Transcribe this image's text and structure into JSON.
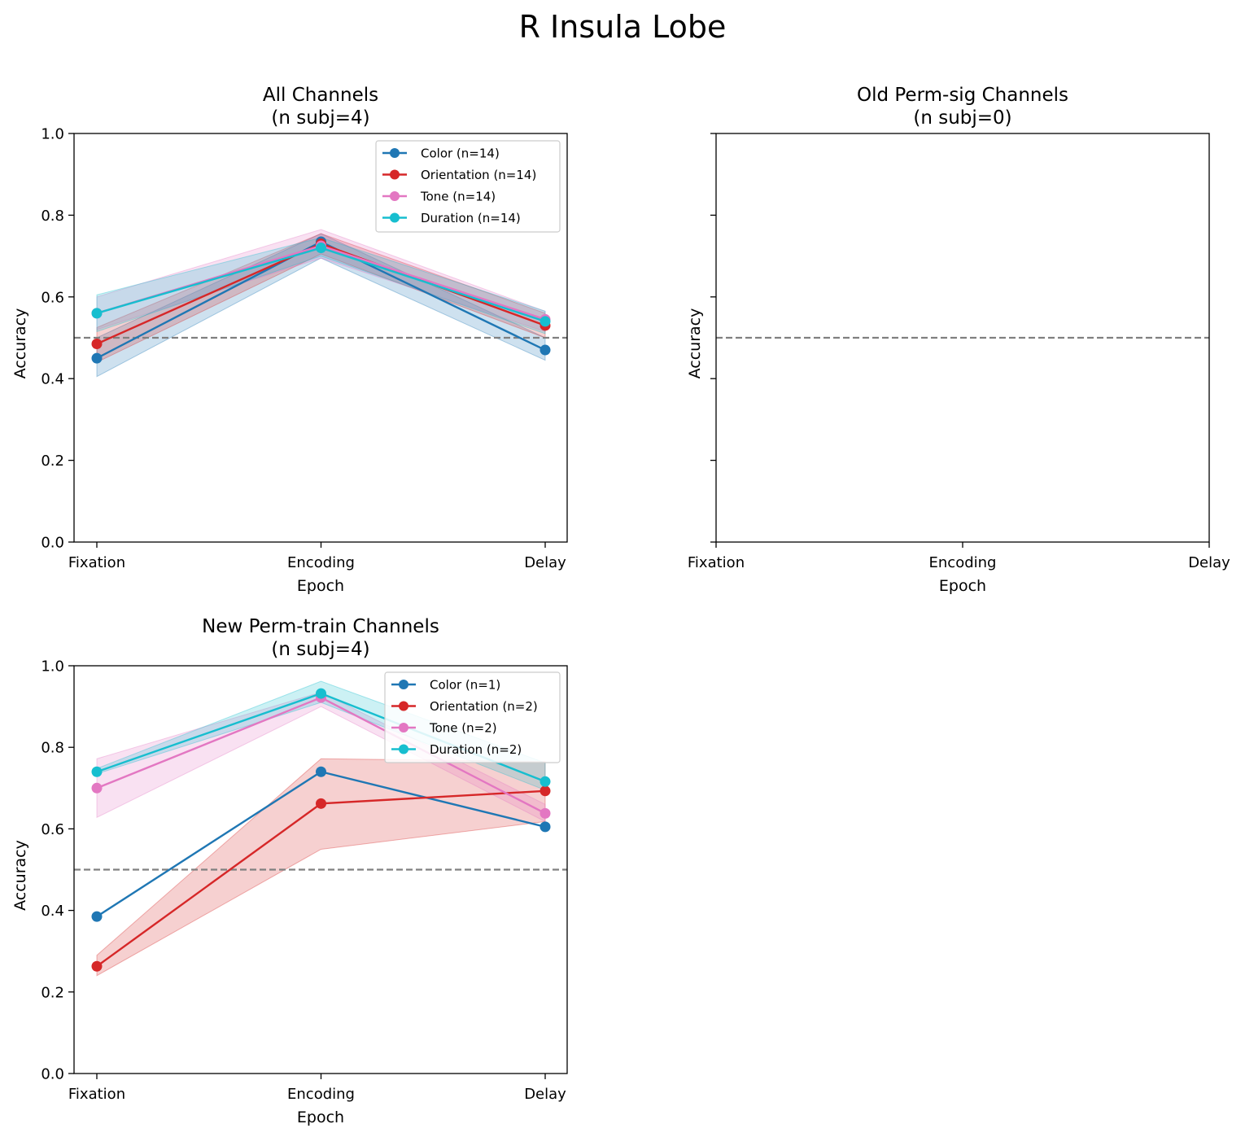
{
  "figure": {
    "title": "R Insula Lobe"
  },
  "colors": {
    "Color": "#1f77b4",
    "Orientation": "#d62728",
    "Tone": "#e377c2",
    "Duration": "#17becf",
    "chance": "#808080"
  },
  "chart_data": [
    {
      "type": "line",
      "title": "All Channels\n(n subj=4)",
      "title_lines": [
        "All Channels",
        "(n subj=4)"
      ],
      "xlabel": "Epoch",
      "ylabel": "Accuracy",
      "categories": [
        "Fixation",
        "Encoding",
        "Delay"
      ],
      "ylim": [
        0,
        1
      ],
      "yticks": [
        "0.0",
        "0.2",
        "0.4",
        "0.6",
        "0.8",
        "1.0"
      ],
      "show_ytick_labels": true,
      "chance_level": 0.5,
      "legend": {
        "position": "top-right"
      },
      "series": [
        {
          "key": "Color",
          "name": "Color (n=14)",
          "values": [
            0.45,
            0.735,
            0.47
          ],
          "lower": [
            0.405,
            0.695,
            0.445
          ],
          "upper": [
            0.5,
            0.755,
            0.5
          ]
        },
        {
          "key": "Orientation",
          "name": "Orientation (n=14)",
          "values": [
            0.485,
            0.73,
            0.53
          ],
          "lower": [
            0.44,
            0.705,
            0.5
          ],
          "upper": [
            0.525,
            0.755,
            0.56
          ]
        },
        {
          "key": "Tone",
          "name": "Tone (n=14)",
          "values": [
            0.56,
            0.725,
            0.545
          ],
          "lower": [
            0.52,
            0.695,
            0.515
          ],
          "upper": [
            0.6,
            0.765,
            0.565
          ]
        },
        {
          "key": "Duration",
          "name": "Duration (n=14)",
          "values": [
            0.56,
            0.72,
            0.54
          ],
          "lower": [
            0.515,
            0.7,
            0.51
          ],
          "upper": [
            0.605,
            0.745,
            0.565
          ]
        }
      ]
    },
    {
      "type": "line",
      "title": "Old Perm-sig Channels\n(n subj=0)",
      "title_lines": [
        "Old Perm-sig Channels",
        "(n subj=0)"
      ],
      "xlabel": "Epoch",
      "ylabel": "Accuracy",
      "categories": [
        "Fixation",
        "Encoding",
        "Delay"
      ],
      "ylim": [
        0,
        1
      ],
      "yticks": [
        "0.0",
        "0.2",
        "0.4",
        "0.6",
        "0.8",
        "1.0"
      ],
      "show_ytick_labels": false,
      "chance_level": 0.5,
      "series": []
    },
    {
      "type": "line",
      "title": "New Perm-train Channels\n(n subj=4)",
      "title_lines": [
        "New Perm-train Channels",
        "(n subj=4)"
      ],
      "xlabel": "Epoch",
      "ylabel": "Accuracy",
      "categories": [
        "Fixation",
        "Encoding",
        "Delay"
      ],
      "ylim": [
        0,
        1
      ],
      "yticks": [
        "0.0",
        "0.2",
        "0.4",
        "0.6",
        "0.8",
        "1.0"
      ],
      "show_ytick_labels": true,
      "chance_level": 0.5,
      "legend": {
        "position": "top-right"
      },
      "series": [
        {
          "key": "Color",
          "name": "Color (n=1)",
          "values": [
            0.385,
            0.74,
            0.605
          ]
        },
        {
          "key": "Orientation",
          "name": "Orientation (n=2)",
          "values": [
            0.263,
            0.662,
            0.693
          ],
          "lower": [
            0.24,
            0.55,
            0.618
          ],
          "upper": [
            0.29,
            0.772,
            0.765
          ]
        },
        {
          "key": "Tone",
          "name": "Tone (n=2)",
          "values": [
            0.7,
            0.922,
            0.638
          ],
          "lower": [
            0.628,
            0.9,
            0.618
          ],
          "upper": [
            0.772,
            0.935,
            0.66
          ]
        },
        {
          "key": "Duration",
          "name": "Duration (n=2)",
          "values": [
            0.74,
            0.932,
            0.716
          ],
          "lower": [
            0.735,
            0.91,
            0.695
          ],
          "upper": [
            0.748,
            0.962,
            0.762
          ]
        }
      ]
    }
  ]
}
